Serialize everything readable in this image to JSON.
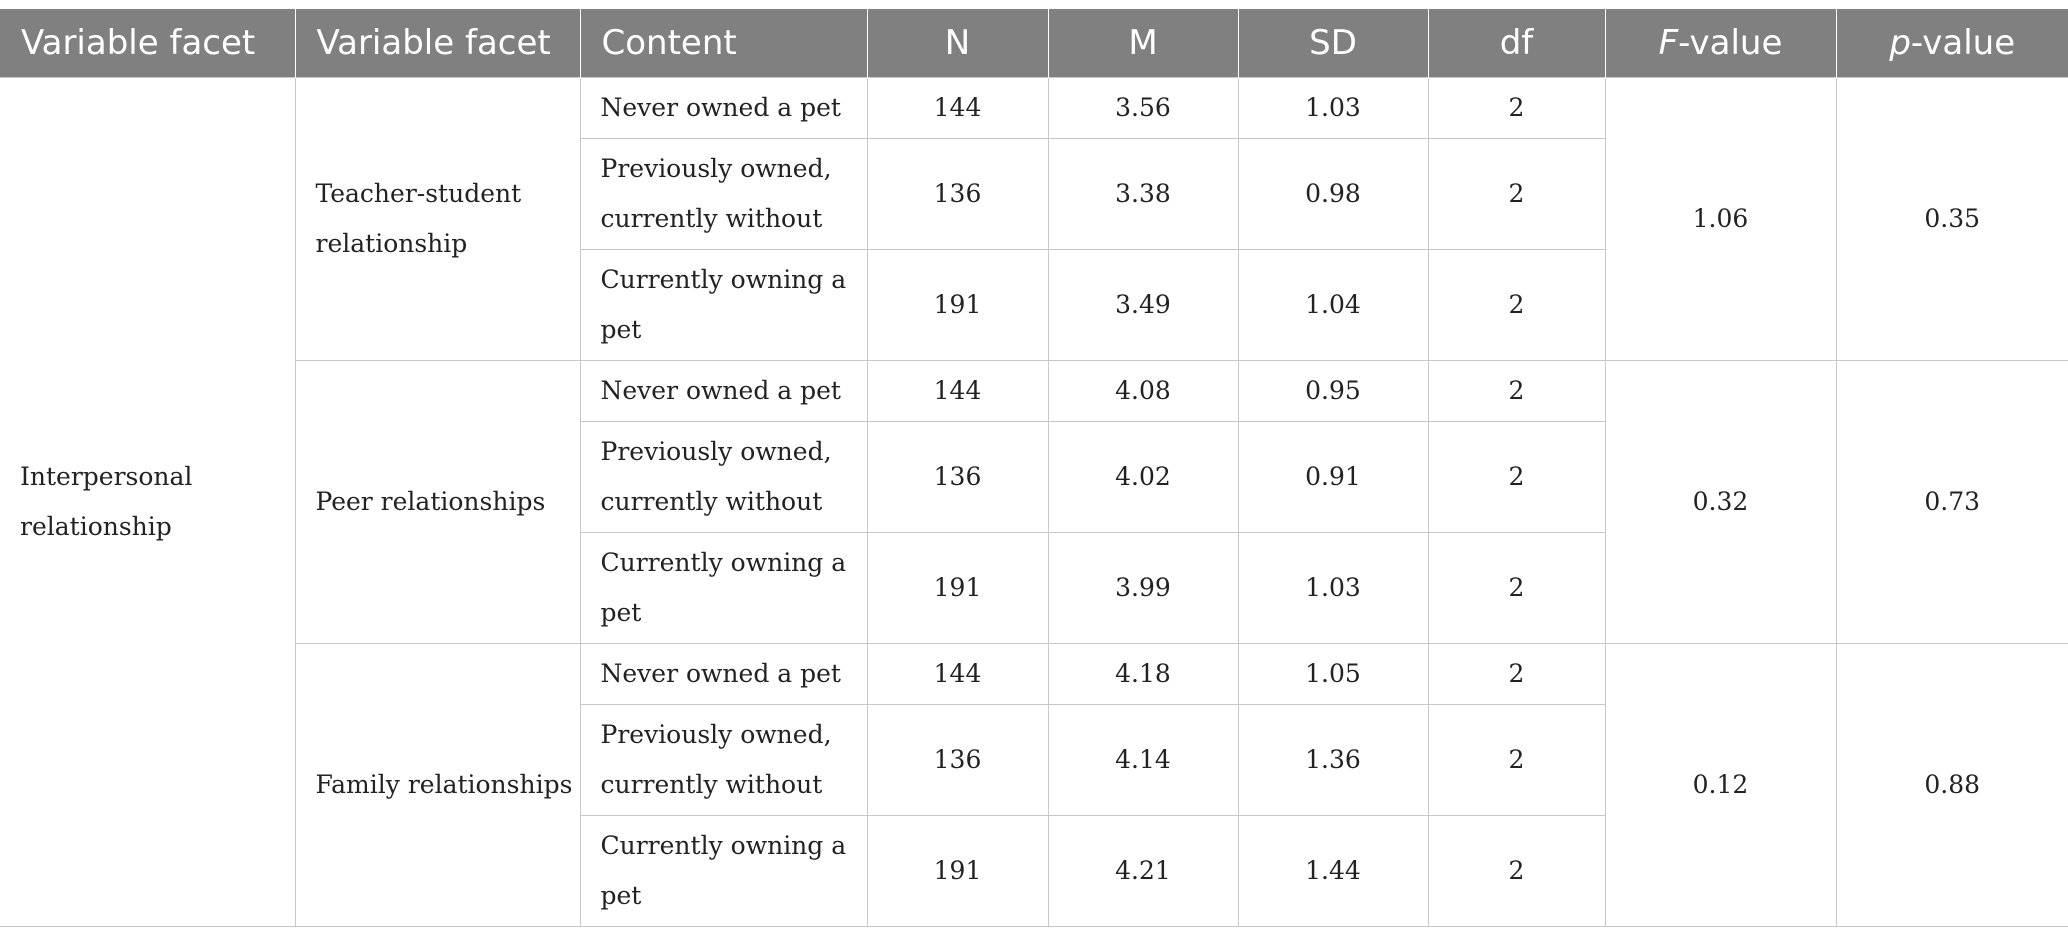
{
  "table": {
    "headers": {
      "col1": "Variable facet",
      "col2": "Variable facet",
      "col3": "Content",
      "col4": "N",
      "col5": "M",
      "col6": "SD",
      "col7": "df",
      "col8_italic": "F",
      "col8_rest": "-value",
      "col9_italic": "p",
      "col9_rest": "-value"
    },
    "category": "Interpersonal relationship",
    "groups": [
      {
        "facet": "Teacher-student relationship",
        "f_value": "1.06",
        "p_value": "0.35",
        "rows": [
          {
            "content": "Never owned a pet",
            "n": "144",
            "m": "3.56",
            "sd": "1.03",
            "df": "2"
          },
          {
            "content": "Previously owned, currently without",
            "n": "136",
            "m": "3.38",
            "sd": "0.98",
            "df": "2"
          },
          {
            "content": "Currently owning a pet",
            "n": "191",
            "m": "3.49",
            "sd": "1.04",
            "df": "2"
          }
        ]
      },
      {
        "facet": "Peer relationships",
        "f_value": "0.32",
        "p_value": "0.73",
        "rows": [
          {
            "content": "Never owned a pet",
            "n": "144",
            "m": "4.08",
            "sd": "0.95",
            "df": "2"
          },
          {
            "content": "Previously owned, currently without",
            "n": "136",
            "m": "4.02",
            "sd": "0.91",
            "df": "2"
          },
          {
            "content": "Currently owning a pet",
            "n": "191",
            "m": "3.99",
            "sd": "1.03",
            "df": "2"
          }
        ]
      },
      {
        "facet": "Family relationships",
        "f_value": "0.12",
        "p_value": "0.88",
        "rows": [
          {
            "content": "Never owned a pet",
            "n": "144",
            "m": "4.18",
            "sd": "1.05",
            "df": "2"
          },
          {
            "content": "Previously owned, currently without",
            "n": "136",
            "m": "4.14",
            "sd": "1.36",
            "df": "2"
          },
          {
            "content": "Currently owning a pet",
            "n": "191",
            "m": "4.21",
            "sd": "1.44",
            "df": "2"
          }
        ]
      }
    ]
  }
}
